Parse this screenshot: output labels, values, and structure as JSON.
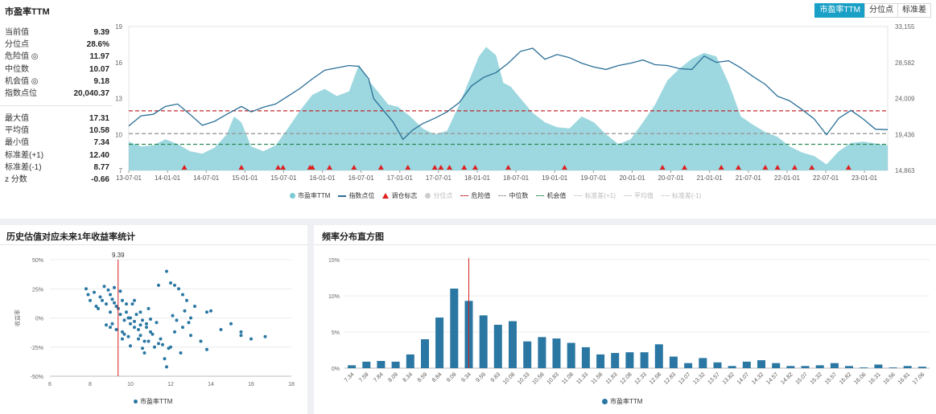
{
  "main": {
    "title": "市盈率TTM",
    "tabs": [
      {
        "label": "市盈率TTM",
        "active": true
      },
      {
        "label": "分位点",
        "active": false
      },
      {
        "label": "标准差",
        "active": false
      }
    ],
    "stats1": [
      {
        "label": "当前值",
        "value": "9.39"
      },
      {
        "label": "分位点",
        "value": "28.6%"
      },
      {
        "label": "危险值 ◎",
        "value": "11.97"
      },
      {
        "label": "中位数",
        "value": "10.07"
      },
      {
        "label": "机会值 ◎",
        "value": "9.18"
      },
      {
        "label": "指数点位",
        "value": "20,040.37"
      }
    ],
    "stats2": [
      {
        "label": "最大值",
        "value": "17.31"
      },
      {
        "label": "平均值",
        "value": "10.58"
      },
      {
        "label": "最小值",
        "value": "7.34"
      },
      {
        "label": "标准差(+1)",
        "value": "12.40"
      },
      {
        "label": "标准差(-1)",
        "value": "8.77"
      },
      {
        "label": "z 分数",
        "value": "-0.66"
      }
    ],
    "legend": [
      {
        "label": "市盈率TTM",
        "kind": "circle",
        "color": "#7ccad4",
        "dim": false
      },
      {
        "label": "指数点位",
        "kind": "line",
        "color": "#2a6f97",
        "dim": false
      },
      {
        "label": "调仓标志",
        "kind": "triangle",
        "color": "#e02020",
        "dim": false
      },
      {
        "label": "分位点",
        "kind": "circle",
        "color": "#cccccc",
        "dim": true
      },
      {
        "label": "危险值",
        "kind": "dash",
        "color": "#c0282d",
        "dim": false
      },
      {
        "label": "中位数",
        "kind": "dash",
        "color": "#999999",
        "dim": false
      },
      {
        "label": "机会值",
        "kind": "dash",
        "color": "#2e8b57",
        "dim": false
      },
      {
        "label": "标准差(+1)",
        "kind": "dash",
        "color": "#cccccc",
        "dim": true
      },
      {
        "label": "平均值",
        "kind": "dash",
        "color": "#cccccc",
        "dim": true
      },
      {
        "label": "标准差(-1)",
        "kind": "dash",
        "color": "#cccccc",
        "dim": true
      }
    ]
  },
  "scatter_panel": {
    "title": "历史估值对应未来1年收益率统计",
    "legend_label": "市盈率TTM"
  },
  "hist_panel": {
    "title": "频率分布直方图",
    "legend_label": "市盈率TTM"
  },
  "colors": {
    "area": "#7ccad4",
    "index_line": "#2a6f97",
    "danger": "#c0282d",
    "median": "#999999",
    "opportunity": "#2e8b57",
    "marker": "#e02020",
    "bar": "#2a77a3",
    "accent": "#1aa0c6"
  },
  "chart_data": [
    {
      "type": "area",
      "x_ticks": [
        "13-07-01",
        "14-01-01",
        "14-07-01",
        "15-01-01",
        "15-07-01",
        "16-01-01",
        "16-07-01",
        "17-01-01",
        "17-07-01",
        "18-01-01",
        "18-07-01",
        "19-01-01",
        "19-07-01",
        "20-01-01",
        "20-07-01",
        "21-01-01",
        "21-07-01",
        "22-01-01",
        "22-07-01",
        "23-01-01"
      ],
      "y_left_ticks": [
        "19",
        "16",
        "13",
        "10",
        "7"
      ],
      "y_right_ticks": [
        "33,155",
        "28,582",
        "24,009",
        "19,436",
        "14,863"
      ],
      "ylim_left": [
        7,
        19
      ],
      "ylim_right": [
        14863,
        33155
      ],
      "pe_series_name": "市盈率TTM",
      "pe_series": [
        [
          0,
          9.4
        ],
        [
          0.5,
          9.0
        ],
        [
          1,
          9.1
        ],
        [
          1.5,
          9.6
        ],
        [
          2,
          9.2
        ],
        [
          2.5,
          8.6
        ],
        [
          3,
          8.4
        ],
        [
          3.5,
          8.9
        ],
        [
          4,
          10.0
        ],
        [
          4.3,
          11.5
        ],
        [
          4.6,
          11.0
        ],
        [
          5,
          9.0
        ],
        [
          5.5,
          8.6
        ],
        [
          6,
          9.1
        ],
        [
          6.5,
          10.5
        ],
        [
          7,
          12.0
        ],
        [
          7.5,
          13.3
        ],
        [
          8,
          13.8
        ],
        [
          8.5,
          13.2
        ],
        [
          9,
          13.6
        ],
        [
          9.4,
          15.8
        ],
        [
          9.8,
          14.5
        ],
        [
          10.2,
          13.5
        ],
        [
          10.6,
          12.5
        ],
        [
          11,
          12.3
        ],
        [
          11.5,
          11.5
        ],
        [
          12,
          10.5
        ],
        [
          12.5,
          10.0
        ],
        [
          13,
          10.3
        ],
        [
          13.5,
          12.5
        ],
        [
          14,
          15.0
        ],
        [
          14.3,
          16.5
        ],
        [
          14.6,
          17.3
        ],
        [
          15,
          16.6
        ],
        [
          15.3,
          14.3
        ],
        [
          15.6,
          14.0
        ],
        [
          16,
          13.0
        ],
        [
          16.5,
          11.8
        ],
        [
          17,
          11.0
        ],
        [
          17.5,
          10.6
        ],
        [
          18,
          10.5
        ],
        [
          18.5,
          11.5
        ],
        [
          19,
          11.0
        ],
        [
          19.5,
          10.0
        ],
        [
          20,
          9.2
        ],
        [
          20.5,
          9.6
        ],
        [
          21,
          11.0
        ],
        [
          21.5,
          12.5
        ],
        [
          22,
          14.5
        ],
        [
          22.5,
          15.5
        ],
        [
          23,
          16.3
        ],
        [
          23.5,
          16.8
        ],
        [
          24,
          16.5
        ],
        [
          24.5,
          14.3
        ],
        [
          25,
          11.5
        ],
        [
          25.5,
          10.8
        ],
        [
          26,
          10.2
        ],
        [
          26.5,
          9.8
        ],
        [
          27,
          9.0
        ],
        [
          27.5,
          8.5
        ],
        [
          28,
          8.2
        ],
        [
          28.5,
          7.5
        ],
        [
          29,
          8.6
        ],
        [
          29.5,
          9.3
        ],
        [
          30,
          9.4
        ],
        [
          31,
          9.1
        ]
      ],
      "index_series_name": "指数点位",
      "index_series": [
        [
          0,
          20500
        ],
        [
          0.5,
          21800
        ],
        [
          1,
          22000
        ],
        [
          1.5,
          23000
        ],
        [
          2,
          23300
        ],
        [
          2.5,
          22000
        ],
        [
          3,
          20600
        ],
        [
          3.5,
          21100
        ],
        [
          4,
          22000
        ],
        [
          4.3,
          22500
        ],
        [
          4.6,
          23000
        ],
        [
          5,
          22300
        ],
        [
          5.5,
          22900
        ],
        [
          6,
          23300
        ],
        [
          6.5,
          24300
        ],
        [
          7,
          25300
        ],
        [
          7.5,
          26500
        ],
        [
          8,
          27600
        ],
        [
          8.5,
          27900
        ],
        [
          9,
          28200
        ],
        [
          9.4,
          28100
        ],
        [
          9.8,
          26500
        ],
        [
          10,
          24000
        ],
        [
          10.4,
          22500
        ],
        [
          10.8,
          21000
        ],
        [
          11.2,
          18800
        ],
        [
          11.6,
          20000
        ],
        [
          12,
          20800
        ],
        [
          12.5,
          21500
        ],
        [
          13,
          22300
        ],
        [
          13.5,
          23500
        ],
        [
          14,
          25600
        ],
        [
          14.5,
          26700
        ],
        [
          15,
          27300
        ],
        [
          15.5,
          28500
        ],
        [
          16,
          30000
        ],
        [
          16.5,
          30400
        ],
        [
          17,
          29000
        ],
        [
          17.5,
          29600
        ],
        [
          18,
          29200
        ],
        [
          18.5,
          28500
        ],
        [
          19,
          28000
        ],
        [
          19.5,
          27700
        ],
        [
          20,
          28200
        ],
        [
          20.5,
          28500
        ],
        [
          21,
          28900
        ],
        [
          21.5,
          28300
        ],
        [
          22,
          28200
        ],
        [
          22.5,
          27800
        ],
        [
          23,
          27700
        ],
        [
          23.5,
          29400
        ],
        [
          24,
          28600
        ],
        [
          24.5,
          28800
        ],
        [
          25,
          27900
        ],
        [
          25.5,
          26800
        ],
        [
          26,
          25800
        ],
        [
          26.5,
          24300
        ],
        [
          27,
          23700
        ],
        [
          27.5,
          22600
        ],
        [
          28,
          21400
        ],
        [
          28.5,
          19400
        ],
        [
          29,
          21500
        ],
        [
          29.5,
          22500
        ],
        [
          30,
          21400
        ],
        [
          30.5,
          20100
        ],
        [
          31,
          20040
        ]
      ],
      "danger_value": 11.97,
      "median_value": 10.07,
      "opportunity_value": 9.18,
      "markers_x": [
        2.27,
        4.6,
        6.1,
        6.3,
        7.4,
        7.5,
        8.2,
        9.2,
        10.3,
        11.4,
        12.5,
        12.75,
        13.1,
        13.7,
        14.15,
        15.5,
        17.8,
        21.8,
        22.7,
        24.2,
        24.9,
        26.0,
        26.5,
        27.2,
        27.9,
        29.4
      ]
    },
    {
      "type": "scatter",
      "xlim": [
        6,
        18
      ],
      "ylim": [
        -50,
        50
      ],
      "x_ticks": [
        "6",
        "8",
        "10",
        "12",
        "14",
        "16",
        "18"
      ],
      "y_ticks": [
        "50%",
        "25%",
        "0%",
        "-25%",
        "-50%"
      ],
      "ylabel": "收益率",
      "current_value": 9.39,
      "current_label": "9.39",
      "series_name": "市盈率TTM",
      "points": [
        [
          7.8,
          25
        ],
        [
          7.9,
          20
        ],
        [
          8.0,
          15
        ],
        [
          8.2,
          22
        ],
        [
          8.3,
          10
        ],
        [
          8.4,
          8
        ],
        [
          8.5,
          18
        ],
        [
          8.6,
          15
        ],
        [
          8.7,
          27
        ],
        [
          8.8,
          12
        ],
        [
          8.9,
          24
        ],
        [
          9.0,
          20
        ],
        [
          9.0,
          5
        ],
        [
          9.1,
          16
        ],
        [
          9.2,
          13
        ],
        [
          9.2,
          26
        ],
        [
          9.3,
          10
        ],
        [
          9.4,
          8
        ],
        [
          9.5,
          23
        ],
        [
          9.5,
          3
        ],
        [
          9.6,
          15
        ],
        [
          9.7,
          -2
        ],
        [
          9.8,
          5
        ],
        [
          9.9,
          0
        ],
        [
          10.0,
          -5
        ],
        [
          10.1,
          12
        ],
        [
          10.2,
          -8
        ],
        [
          10.3,
          3
        ],
        [
          10.4,
          -10
        ],
        [
          10.5,
          -15
        ],
        [
          10.6,
          -2
        ],
        [
          10.7,
          -20
        ],
        [
          10.8,
          -5
        ],
        [
          10.9,
          8
        ],
        [
          11.0,
          -12
        ],
        [
          11.2,
          -25
        ],
        [
          11.4,
          -22
        ],
        [
          11.5,
          -18
        ],
        [
          11.8,
          -42
        ],
        [
          12.0,
          -25
        ],
        [
          12.5,
          -30
        ],
        [
          13.0,
          -15
        ],
        [
          13.5,
          -20
        ],
        [
          13.8,
          5
        ],
        [
          14.0,
          6
        ],
        [
          14.5,
          -10
        ],
        [
          15.0,
          -5
        ],
        [
          15.5,
          -15
        ],
        [
          16.0,
          -18
        ],
        [
          9.0,
          -8
        ],
        [
          9.3,
          -10
        ],
        [
          9.6,
          -12
        ],
        [
          10.0,
          0
        ],
        [
          10.2,
          -3
        ],
        [
          10.5,
          -6
        ],
        [
          10.8,
          -8
        ],
        [
          11.0,
          -1
        ],
        [
          11.3,
          -4
        ],
        [
          9.1,
          -5
        ],
        [
          8.8,
          -6
        ],
        [
          9.7,
          -14
        ],
        [
          9.9,
          -16
        ],
        [
          10.4,
          -18
        ],
        [
          10.9,
          -20
        ],
        [
          11.6,
          -23
        ],
        [
          11.9,
          -26
        ],
        [
          12.2,
          -12
        ],
        [
          12.6,
          -8
        ],
        [
          12.9,
          -4
        ],
        [
          11.4,
          28
        ],
        [
          11.8,
          40
        ],
        [
          12.0,
          30
        ],
        [
          12.2,
          28
        ],
        [
          12.4,
          25
        ],
        [
          12.6,
          20
        ],
        [
          12.8,
          15
        ],
        [
          13.2,
          10
        ],
        [
          12.1,
          2
        ],
        [
          11.7,
          -35
        ],
        [
          10.7,
          -30
        ],
        [
          10.5,
          5
        ],
        [
          10.2,
          15
        ],
        [
          9.8,
          12
        ],
        [
          9.6,
          -18
        ],
        [
          10.0,
          -24
        ],
        [
          10.6,
          -26
        ],
        [
          11.1,
          -14
        ],
        [
          12.3,
          -2
        ],
        [
          12.7,
          6
        ],
        [
          13.0,
          0
        ],
        [
          13.8,
          -27
        ],
        [
          15.5,
          -12
        ],
        [
          16.7,
          -16
        ]
      ]
    },
    {
      "type": "bar",
      "series_name": "市盈率TTM",
      "ylim": [
        0,
        15
      ],
      "y_ticks": [
        "15%",
        "10%",
        "5%",
        "0%"
      ],
      "current_value": 9.34,
      "categories": [
        "7.34",
        "7.59",
        "7.84",
        "8.09",
        "8.34",
        "8.59",
        "8.84",
        "9.09",
        "9.34",
        "9.59",
        "9.83",
        "10.08",
        "10.33",
        "10.58",
        "10.83",
        "11.08",
        "11.33",
        "11.58",
        "11.83",
        "12.08",
        "12.33",
        "12.58",
        "12.83",
        "13.07",
        "13.32",
        "13.57",
        "13.82",
        "14.07",
        "14.32",
        "14.57",
        "14.82",
        "15.07",
        "15.32",
        "15.57",
        "15.82",
        "16.06",
        "16.31",
        "16.56",
        "16.81",
        "17.06"
      ],
      "values": [
        0.4,
        0.9,
        1.0,
        0.9,
        1.9,
        4.0,
        7.0,
        11.0,
        9.3,
        7.3,
        6.0,
        6.5,
        3.7,
        4.3,
        4.1,
        3.5,
        2.9,
        1.9,
        2.1,
        2.2,
        2.2,
        3.3,
        1.6,
        0.7,
        1.4,
        0.8,
        0.3,
        0.9,
        1.1,
        0.7,
        0.3,
        0.3,
        0.4,
        0.7,
        0.3,
        0.1,
        0.5,
        0.1,
        0.3,
        0.2
      ]
    }
  ]
}
